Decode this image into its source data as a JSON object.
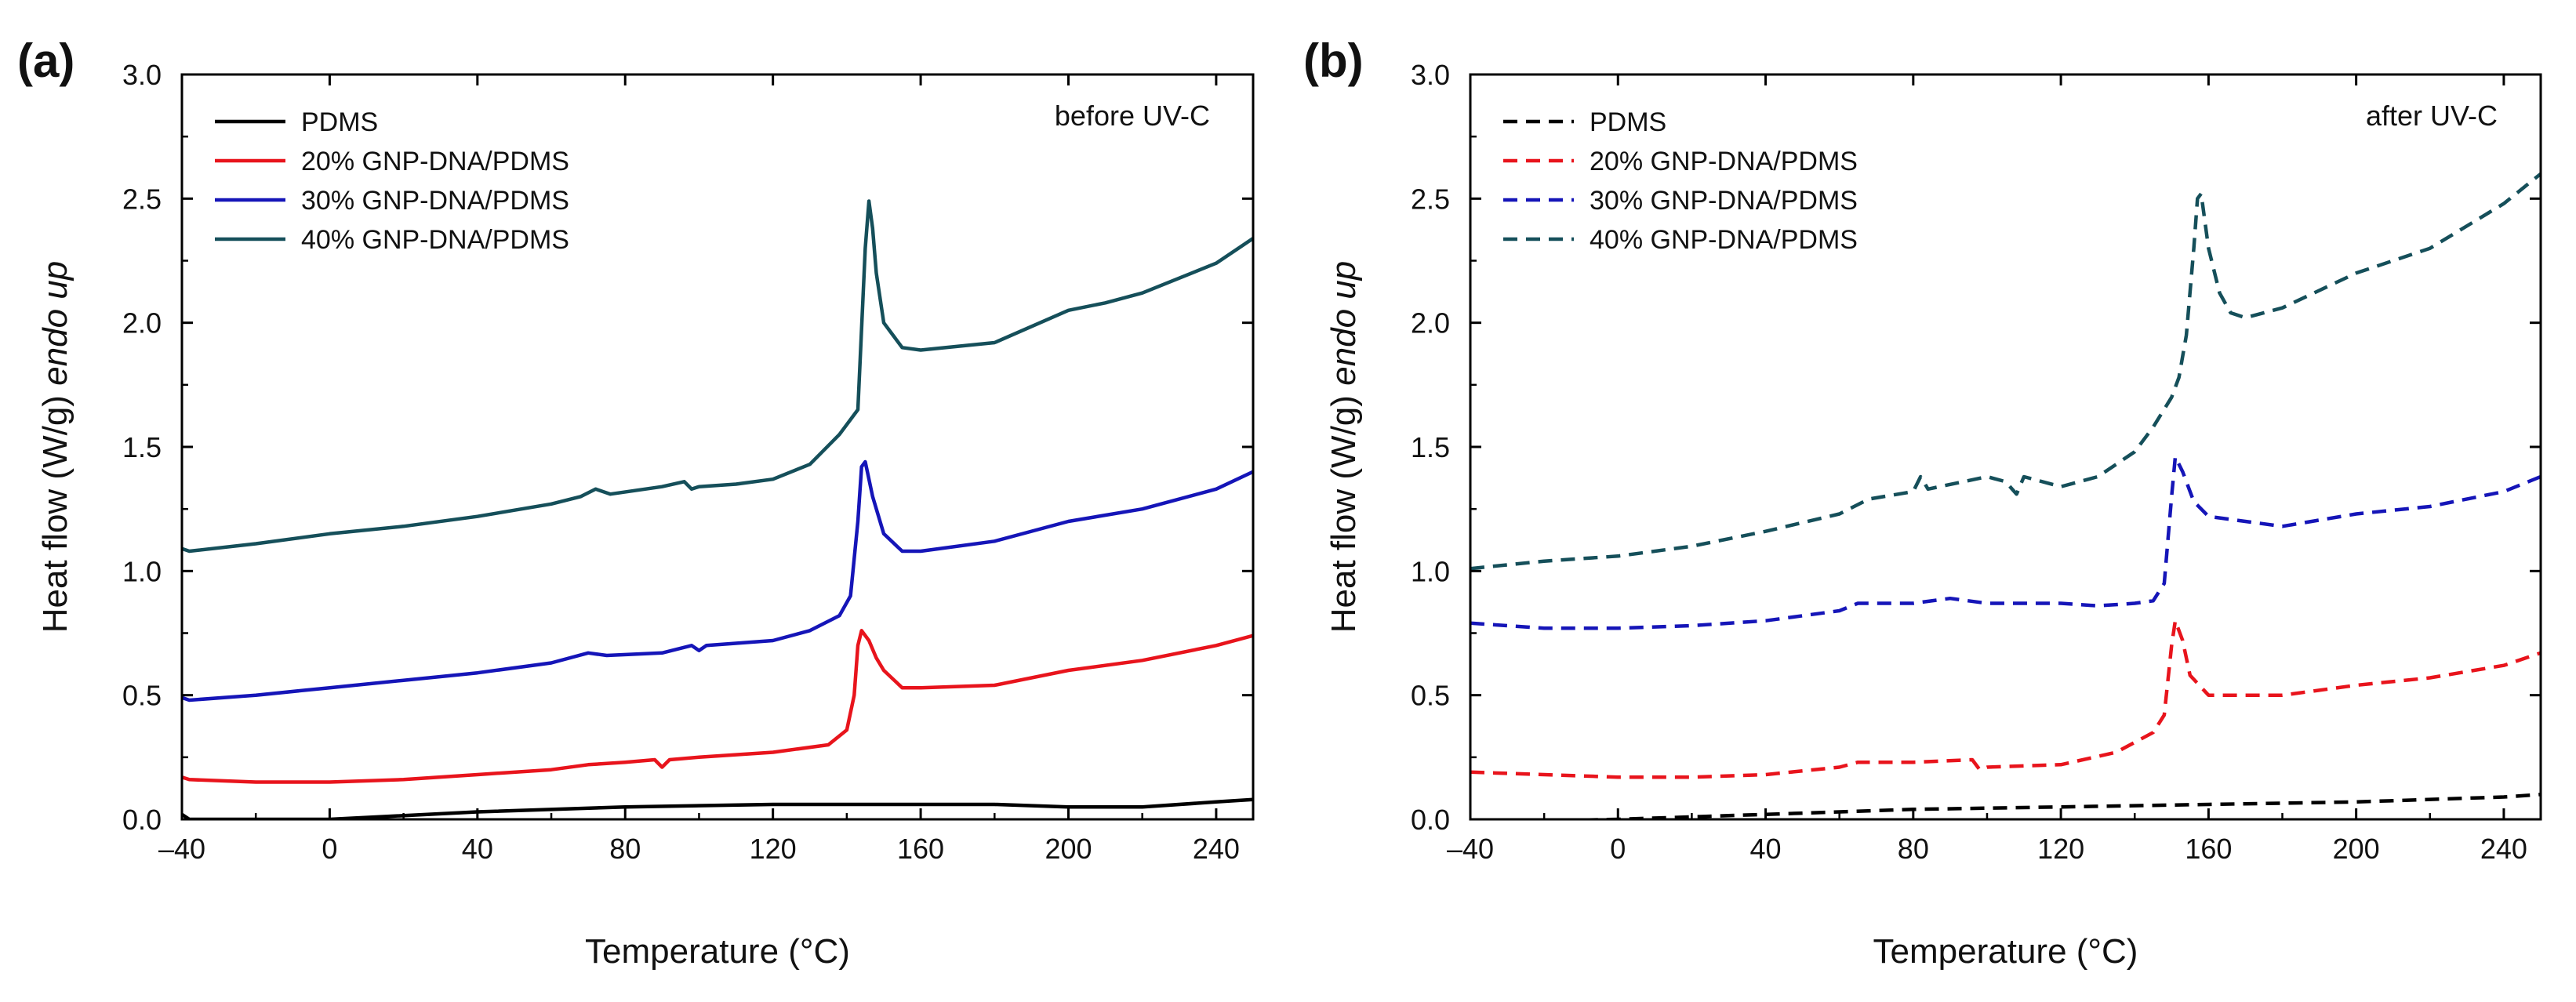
{
  "chart_data": [
    {
      "type": "line",
      "panel_label": "(a)",
      "annotation": "before UV-C",
      "xlabel": "Temperature (°C)",
      "ylabel_main": "Heat flow (W/g)",
      "ylabel_italic": "endo up",
      "xlim": [
        -40,
        250
      ],
      "ylim": [
        0,
        3.0
      ],
      "xticks": [
        -40,
        0,
        40,
        80,
        120,
        160,
        200,
        240
      ],
      "xtick_labels": [
        "–40",
        "0",
        "40",
        "80",
        "120",
        "160",
        "200",
        "240"
      ],
      "yticks": [
        0,
        0.5,
        1,
        1.5,
        2,
        2.5,
        3
      ],
      "ytick_labels": [
        "0.0",
        "0.5",
        "1.0",
        "1.5",
        "2.0",
        "2.5",
        "3.0"
      ],
      "grid": false,
      "legend_position": "top-left",
      "series": [
        {
          "name": "PDMS",
          "color": "#000000",
          "dash": "solid",
          "x": [
            -40,
            -38,
            0,
            40,
            80,
            120,
            143,
            150,
            160,
            180,
            200,
            220,
            240,
            250
          ],
          "y": [
            0.02,
            0.0,
            0.0,
            0.03,
            0.05,
            0.06,
            0.06,
            0.06,
            0.06,
            0.06,
            0.05,
            0.05,
            0.07,
            0.08
          ]
        },
        {
          "name": "20% GNP-DNA/PDMS",
          "color": "#e8141c",
          "dash": "solid",
          "x": [
            -40,
            -38,
            -20,
            0,
            20,
            40,
            60,
            70,
            80,
            88,
            90,
            92,
            100,
            120,
            135,
            140,
            142,
            143,
            144,
            146,
            148,
            150,
            155,
            160,
            180,
            200,
            220,
            240,
            250
          ],
          "y": [
            0.17,
            0.16,
            0.15,
            0.15,
            0.16,
            0.18,
            0.2,
            0.22,
            0.23,
            0.24,
            0.21,
            0.24,
            0.25,
            0.27,
            0.3,
            0.36,
            0.5,
            0.7,
            0.76,
            0.72,
            0.65,
            0.6,
            0.53,
            0.53,
            0.54,
            0.6,
            0.64,
            0.7,
            0.74
          ]
        },
        {
          "name": "30% GNP-DNA/PDMS",
          "color": "#1515b8",
          "dash": "solid",
          "x": [
            -40,
            -38,
            -20,
            0,
            20,
            40,
            60,
            70,
            75,
            90,
            98,
            100,
            102,
            120,
            130,
            138,
            141,
            143,
            144,
            145,
            147,
            150,
            155,
            160,
            180,
            200,
            220,
            240,
            250
          ],
          "y": [
            0.49,
            0.48,
            0.5,
            0.53,
            0.56,
            0.59,
            0.63,
            0.67,
            0.66,
            0.67,
            0.7,
            0.68,
            0.7,
            0.72,
            0.76,
            0.82,
            0.9,
            1.2,
            1.42,
            1.44,
            1.3,
            1.15,
            1.08,
            1.08,
            1.12,
            1.2,
            1.25,
            1.33,
            1.4
          ]
        },
        {
          "name": "40% GNP-DNA/PDMS",
          "color": "#154f5a",
          "dash": "solid",
          "x": [
            -40,
            -38,
            -20,
            0,
            20,
            40,
            60,
            68,
            72,
            76,
            90,
            96,
            98,
            100,
            110,
            120,
            130,
            138,
            143,
            145,
            146,
            147,
            148,
            150,
            155,
            160,
            180,
            200,
            210,
            220,
            240,
            250
          ],
          "y": [
            1.09,
            1.08,
            1.11,
            1.15,
            1.18,
            1.22,
            1.27,
            1.3,
            1.33,
            1.31,
            1.34,
            1.36,
            1.33,
            1.34,
            1.35,
            1.37,
            1.43,
            1.55,
            1.65,
            2.3,
            2.49,
            2.38,
            2.2,
            2.0,
            1.9,
            1.89,
            1.92,
            2.05,
            2.08,
            2.12,
            2.24,
            2.34
          ]
        }
      ]
    },
    {
      "type": "line",
      "panel_label": "(b)",
      "annotation": "after UV-C",
      "xlabel": "Temperature (°C)",
      "ylabel_main": "Heat flow (W/g)",
      "ylabel_italic": "endo up",
      "xlim": [
        -40,
        250
      ],
      "ylim": [
        0,
        3.0
      ],
      "xticks": [
        -40,
        0,
        40,
        80,
        120,
        160,
        200,
        240
      ],
      "xtick_labels": [
        "–40",
        "0",
        "40",
        "80",
        "120",
        "160",
        "200",
        "240"
      ],
      "yticks": [
        0,
        0.5,
        1,
        1.5,
        2,
        2.5,
        3
      ],
      "ytick_labels": [
        "0.0",
        "0.5",
        "1.0",
        "1.5",
        "2.0",
        "2.5",
        "3.0"
      ],
      "grid": false,
      "legend_position": "top-left",
      "series": [
        {
          "name": "PDMS",
          "color": "#000000",
          "dash": "dashed",
          "x": [
            -40,
            -35,
            0,
            40,
            80,
            120,
            160,
            200,
            240,
            250
          ],
          "y": [
            -0.02,
            -0.01,
            0.0,
            0.02,
            0.04,
            0.05,
            0.06,
            0.07,
            0.09,
            0.1
          ]
        },
        {
          "name": "20% GNP-DNA/PDMS",
          "color": "#e8141c",
          "dash": "dashed",
          "x": [
            -40,
            -20,
            0,
            20,
            40,
            60,
            65,
            80,
            96,
            98,
            100,
            120,
            135,
            145,
            148,
            150,
            151,
            153,
            155,
            160,
            180,
            200,
            220,
            240,
            250
          ],
          "y": [
            0.19,
            0.18,
            0.17,
            0.17,
            0.18,
            0.21,
            0.23,
            0.23,
            0.24,
            0.2,
            0.21,
            0.22,
            0.27,
            0.35,
            0.42,
            0.7,
            0.8,
            0.72,
            0.58,
            0.5,
            0.5,
            0.54,
            0.57,
            0.62,
            0.67
          ]
        },
        {
          "name": "30% GNP-DNA/PDMS",
          "color": "#1515b8",
          "dash": "dashed",
          "x": [
            -40,
            -20,
            0,
            20,
            40,
            60,
            65,
            80,
            90,
            100,
            110,
            120,
            130,
            140,
            145,
            148,
            150,
            151,
            153,
            156,
            160,
            180,
            200,
            220,
            240,
            250
          ],
          "y": [
            0.79,
            0.77,
            0.77,
            0.78,
            0.8,
            0.84,
            0.87,
            0.87,
            0.89,
            0.87,
            0.87,
            0.87,
            0.86,
            0.87,
            0.88,
            0.95,
            1.3,
            1.46,
            1.4,
            1.28,
            1.22,
            1.18,
            1.23,
            1.26,
            1.32,
            1.38
          ]
        },
        {
          "name": "40% GNP-DNA/PDMS",
          "color": "#154f5a",
          "dash": "dashed",
          "x": [
            -40,
            -20,
            0,
            20,
            40,
            60,
            68,
            80,
            82,
            84,
            100,
            105,
            108,
            110,
            120,
            130,
            140,
            145,
            150,
            152,
            154,
            156,
            157,
            158,
            160,
            163,
            166,
            170,
            180,
            200,
            220,
            240,
            250
          ],
          "y": [
            1.01,
            1.04,
            1.06,
            1.1,
            1.16,
            1.23,
            1.29,
            1.32,
            1.38,
            1.33,
            1.38,
            1.36,
            1.31,
            1.38,
            1.34,
            1.38,
            1.48,
            1.58,
            1.7,
            1.78,
            1.95,
            2.3,
            2.5,
            2.52,
            2.3,
            2.12,
            2.04,
            2.02,
            2.06,
            2.2,
            2.3,
            2.48,
            2.6
          ]
        }
      ]
    }
  ]
}
